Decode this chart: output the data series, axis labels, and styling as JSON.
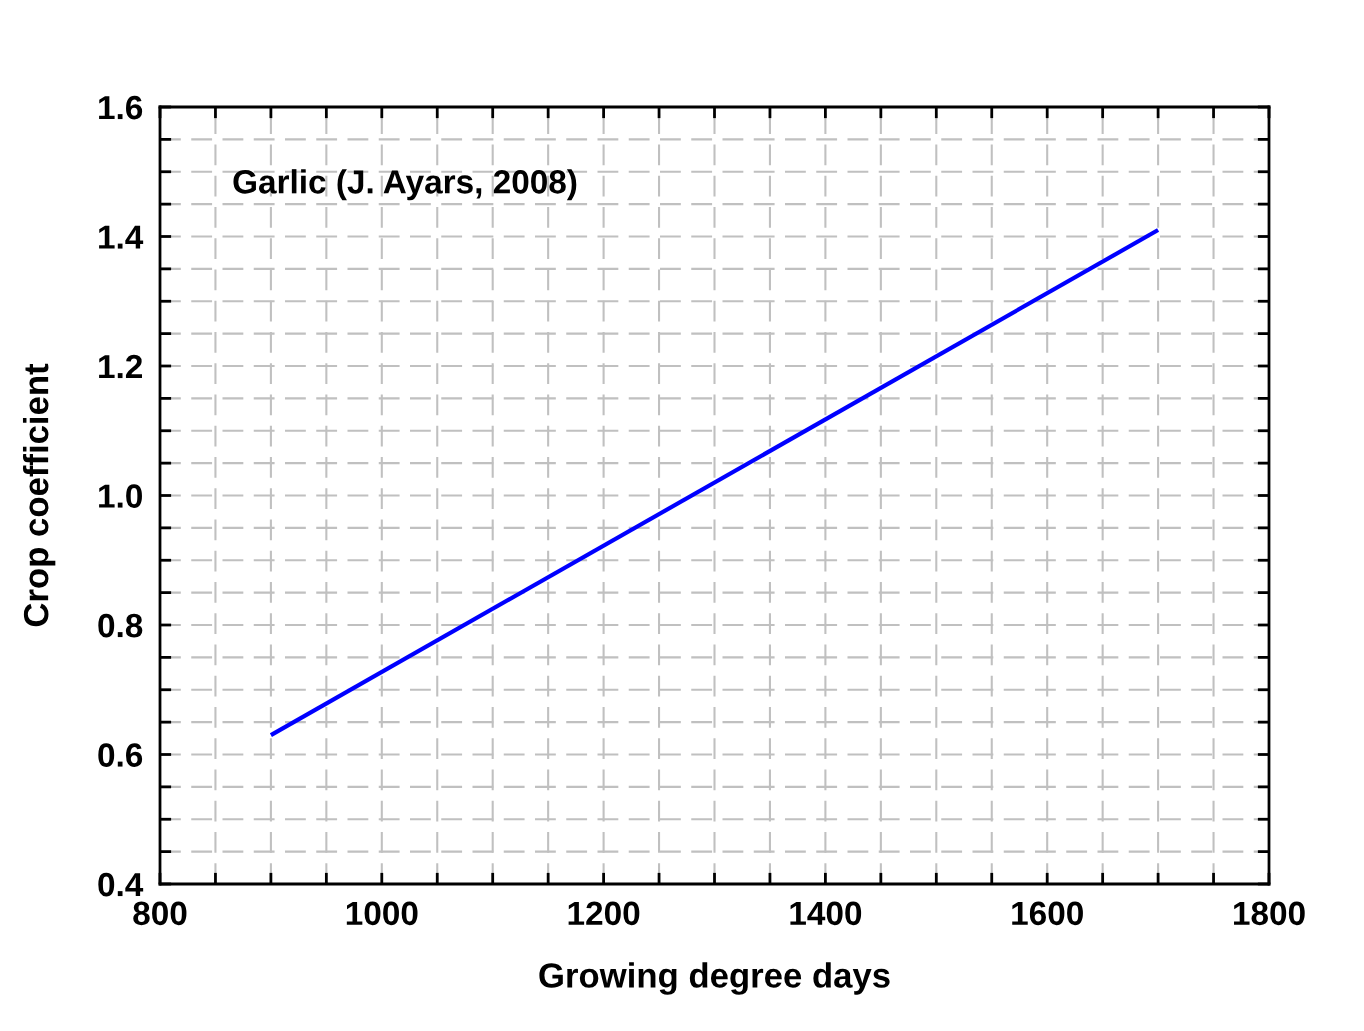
{
  "chart_data": {
    "type": "line",
    "xlabel": "Growing degree days",
    "ylabel": "Crop coefficient",
    "annotations": [
      "Garlic (J. Ayars, 2008)"
    ],
    "x": [
      900,
      1700
    ],
    "series": [
      {
        "color": "#0000ff",
        "values": [
          0.63,
          1.41
        ]
      }
    ],
    "xlim": [
      800,
      1800
    ],
    "xticks": [
      800,
      {
        "value": 850,
        "label": null
      },
      {
        "value": 900,
        "label": null
      },
      {
        "value": 950,
        "label": null
      },
      1000,
      {
        "value": 1050,
        "label": null
      },
      {
        "value": 1100,
        "label": null
      },
      {
        "value": 1150,
        "label": null
      },
      1200,
      {
        "value": 1250,
        "label": null
      },
      {
        "value": 1300,
        "label": null
      },
      {
        "value": 1350,
        "label": null
      },
      1400,
      {
        "value": 1450,
        "label": null
      },
      {
        "value": 1500,
        "label": null
      },
      {
        "value": 1550,
        "label": null
      },
      1600,
      {
        "value": 1650,
        "label": null
      },
      {
        "value": 1700,
        "label": null
      },
      {
        "value": 1750,
        "label": null
      },
      1800
    ],
    "ylim": [
      0.4,
      1.6
    ],
    "yticks": [
      {
        "value": 0.4,
        "label": "0.4"
      },
      {
        "value": 0.45,
        "label": null
      },
      {
        "value": 0.5,
        "label": null
      },
      {
        "value": 0.55,
        "label": null
      },
      {
        "value": 0.6,
        "label": "0.6"
      },
      {
        "value": 0.65,
        "label": null
      },
      {
        "value": 0.7,
        "label": null
      },
      {
        "value": 0.75,
        "label": null
      },
      {
        "value": 0.8,
        "label": "0.8"
      },
      {
        "value": 0.85,
        "label": null
      },
      {
        "value": 0.9,
        "label": null
      },
      {
        "value": 0.95,
        "label": null
      },
      {
        "value": 1.0,
        "label": "1.0"
      },
      {
        "value": 1.05,
        "label": null
      },
      {
        "value": 1.1,
        "label": null
      },
      {
        "value": 1.15,
        "label": null
      },
      {
        "value": 1.2,
        "label": "1.2"
      },
      {
        "value": 1.25,
        "label": null
      },
      {
        "value": 1.3,
        "label": null
      },
      {
        "value": 1.35,
        "label": null
      },
      {
        "value": 1.4,
        "label": "1.4"
      },
      {
        "value": 1.45,
        "label": null
      },
      {
        "value": 1.5,
        "label": null
      },
      {
        "value": 1.55,
        "label": null
      },
      {
        "value": 1.6,
        "label": "1.6"
      }
    ],
    "grid": true,
    "line_style": "solid"
  }
}
